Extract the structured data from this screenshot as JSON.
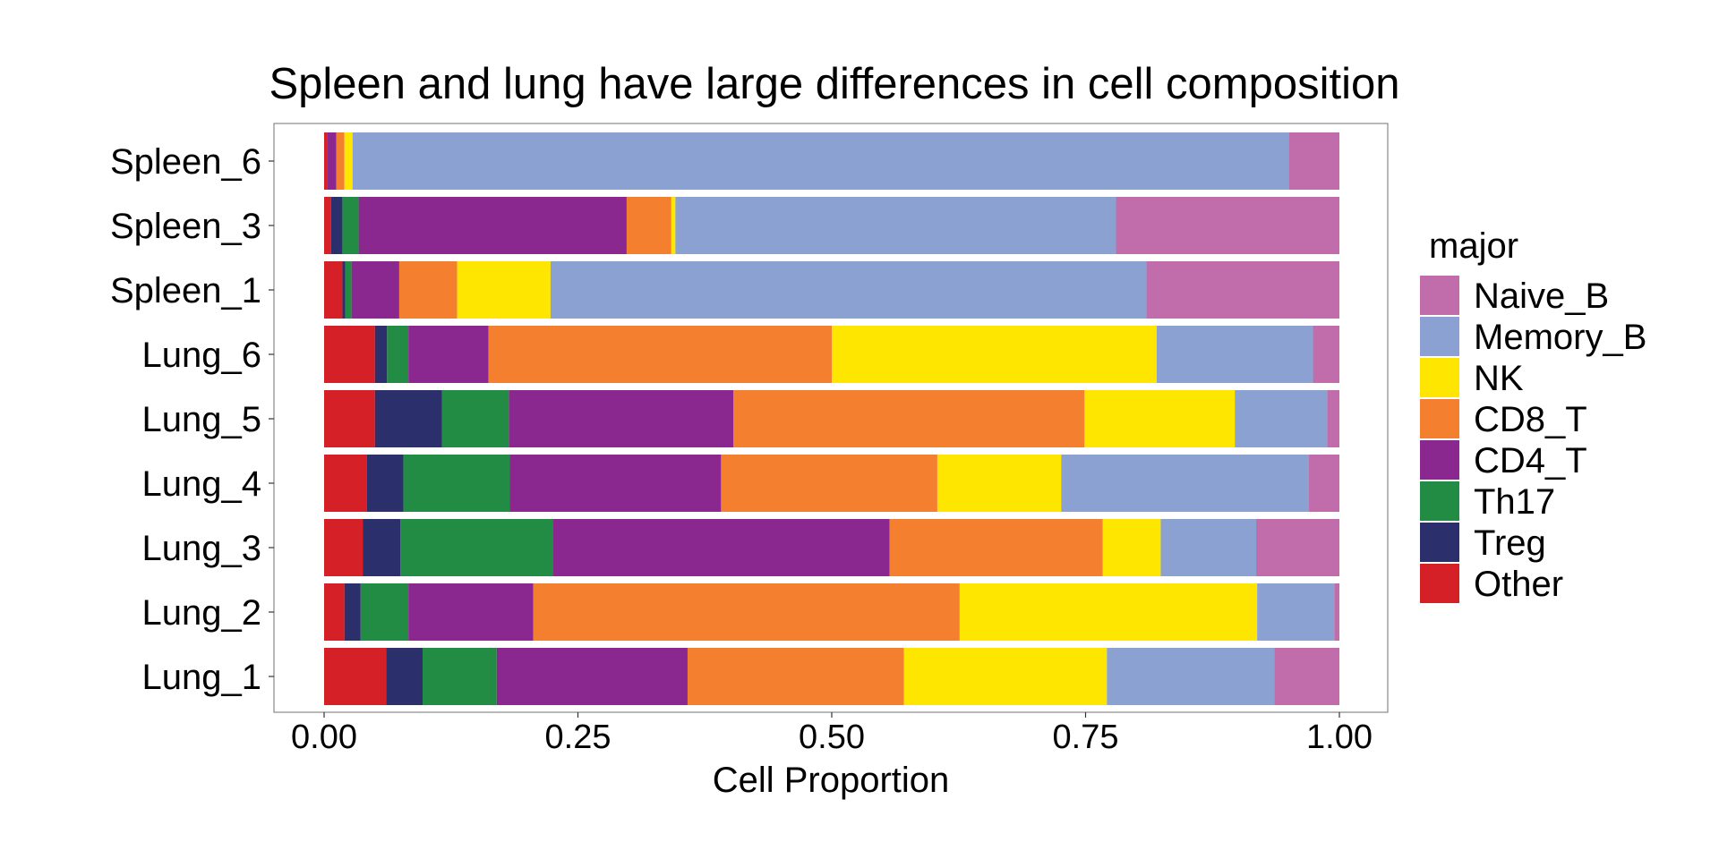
{
  "chart_data": {
    "type": "bar",
    "orientation": "horizontal",
    "stacked": true,
    "title": "Spleen and lung have large differences in cell composition",
    "xlabel": "Cell Proportion",
    "ylabel": "",
    "xlim": [
      0,
      1
    ],
    "xticks": [
      "0.00",
      "0.25",
      "0.50",
      "0.75",
      "1.00"
    ],
    "grid": false,
    "legend": {
      "title": "major",
      "position": "right"
    },
    "categories": [
      "Spleen_6",
      "Spleen_3",
      "Spleen_1",
      "Lung_6",
      "Lung_5",
      "Lung_4",
      "Lung_3",
      "Lung_2",
      "Lung_1"
    ],
    "series": [
      {
        "name": "Other",
        "color": "#D62027",
        "values": [
          0.003,
          0.007,
          0.018,
          0.05,
          0.05,
          0.042,
          0.038,
          0.02,
          0.061
        ]
      },
      {
        "name": "Treg",
        "color": "#2B2F6B",
        "values": [
          0.0,
          0.011,
          0.003,
          0.012,
          0.066,
          0.036,
          0.037,
          0.016,
          0.036
        ]
      },
      {
        "name": "Th17",
        "color": "#228B44",
        "values": [
          0.0,
          0.016,
          0.006,
          0.021,
          0.066,
          0.105,
          0.15,
          0.047,
          0.073
        ]
      },
      {
        "name": "CD4_T",
        "color": "#8A288F",
        "values": [
          0.009,
          0.264,
          0.047,
          0.079,
          0.221,
          0.208,
          0.332,
          0.123,
          0.188
        ]
      },
      {
        "name": "CD8_T",
        "color": "#F47F2F",
        "values": [
          0.008,
          0.044,
          0.057,
          0.338,
          0.346,
          0.213,
          0.21,
          0.42,
          0.213
        ]
      },
      {
        "name": "NK",
        "color": "#FEE601",
        "values": [
          0.008,
          0.004,
          0.092,
          0.32,
          0.148,
          0.122,
          0.057,
          0.293,
          0.2
        ]
      },
      {
        "name": "Memory_B",
        "color": "#8BA1D2",
        "values": [
          0.922,
          0.434,
          0.587,
          0.154,
          0.091,
          0.244,
          0.094,
          0.076,
          0.165
        ]
      },
      {
        "name": "Naive_B",
        "color": "#C16DAB",
        "values": [
          0.05,
          0.22,
          0.19,
          0.026,
          0.012,
          0.03,
          0.082,
          0.005,
          0.064
        ]
      }
    ]
  }
}
